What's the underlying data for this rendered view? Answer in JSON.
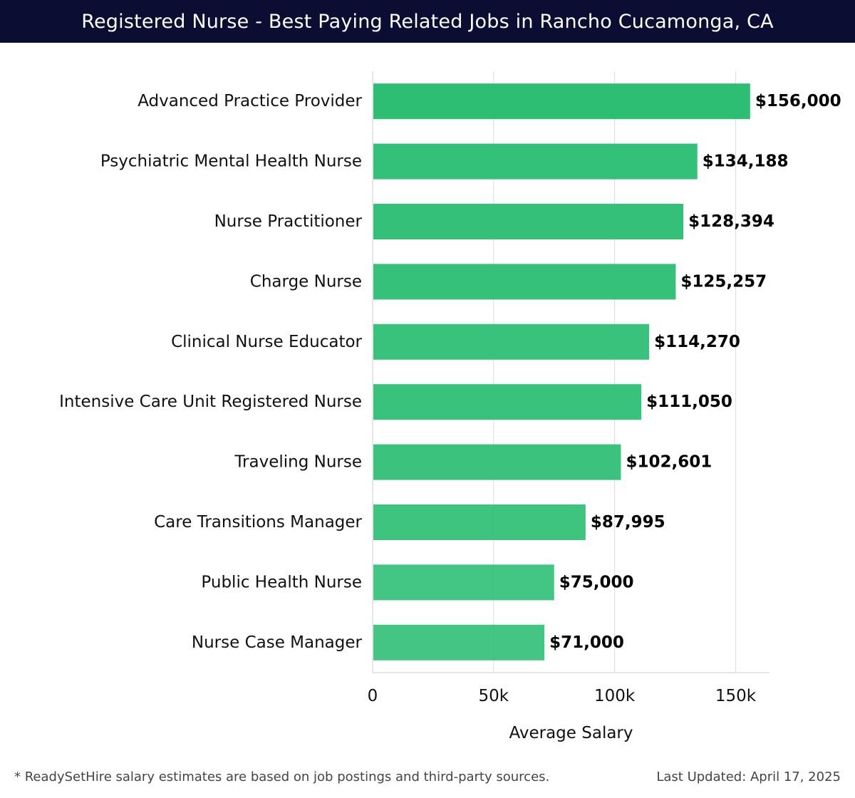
{
  "header": {
    "title": "Registered Nurse - Best Paying Related Jobs in Rancho Cucamonga, CA"
  },
  "chart_data": {
    "type": "bar",
    "orientation": "horizontal",
    "categories": [
      "Advanced Practice Provider",
      "Psychiatric Mental Health Nurse",
      "Nurse Practitioner",
      "Charge Nurse",
      "Clinical Nurse Educator",
      "Intensive Care Unit Registered Nurse",
      "Traveling Nurse",
      "Care Transitions Manager",
      "Public Health Nurse",
      "Nurse Case Manager"
    ],
    "values": [
      156000,
      134188,
      128394,
      125257,
      114270,
      111050,
      102601,
      87995,
      75000,
      71000
    ],
    "value_labels": [
      "$156,000",
      "$134,188",
      "$128,394",
      "$125,257",
      "$114,270",
      "$111,050",
      "$102,601",
      "$87,995",
      "$75,000",
      "$71,000"
    ],
    "xlabel": "Average Salary",
    "ylabel": "",
    "xlim": [
      0,
      164000
    ],
    "x_ticks": [
      0,
      50000,
      100000,
      150000
    ],
    "x_tick_labels": [
      "0",
      "50k",
      "100k",
      "150k"
    ],
    "grid": "vertical",
    "bar_color": "#2dbe74"
  },
  "footer": {
    "note": "* ReadySetHire salary estimates are based on job postings and third-party sources.",
    "updated": "Last Updated: April 17, 2025"
  }
}
